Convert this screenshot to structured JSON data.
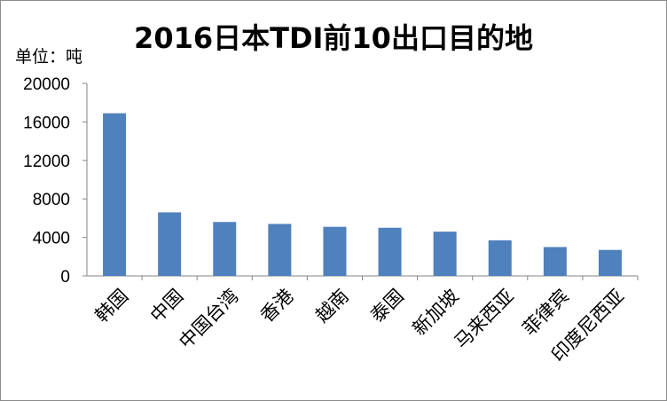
{
  "chart_data": {
    "type": "bar",
    "title": "2016日本TDI前10出口目的地",
    "unit_label": "单位：吨",
    "categories": [
      "韩国",
      "中国",
      "中国台湾",
      "香港",
      "越南",
      "泰国",
      "新加坡",
      "马来西亚",
      "菲律宾",
      "印度尼西亚"
    ],
    "values": [
      16900,
      6600,
      5600,
      5400,
      5100,
      5000,
      4600,
      3700,
      3000,
      2700
    ],
    "ylim": [
      0,
      20000
    ],
    "yticks": [
      "0",
      "4000",
      "8000",
      "12000",
      "16000",
      "20000"
    ],
    "bar_color": "#4f81bd",
    "grid": false,
    "legend": "none"
  }
}
